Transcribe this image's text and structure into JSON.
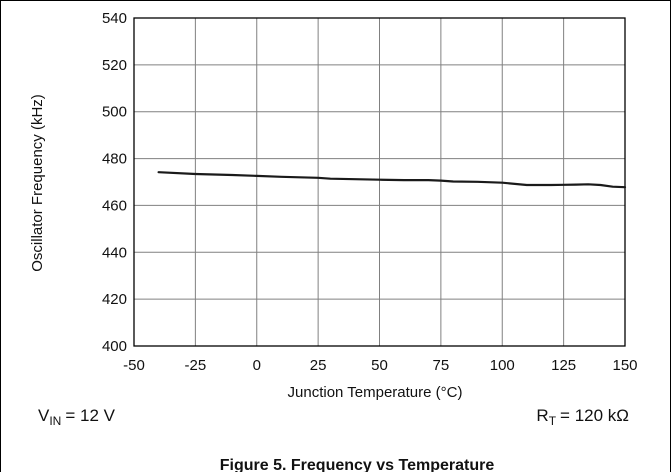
{
  "chart_data": {
    "type": "line",
    "title": "Figure 5. Frequency vs Temperature",
    "xlabel": "Junction Temperature (°C)",
    "ylabel": "Oscillator Frequency (kHz)",
    "xlim": [
      -50,
      150
    ],
    "ylim": [
      400,
      540
    ],
    "xticks": [
      -50,
      -25,
      0,
      25,
      50,
      75,
      100,
      125,
      150
    ],
    "yticks": [
      400,
      420,
      440,
      460,
      480,
      500,
      520,
      540
    ],
    "grid": true,
    "series": [
      {
        "x": [
          -40,
          -25,
          -10,
          0,
          10,
          25,
          30,
          40,
          50,
          60,
          70,
          75,
          80,
          90,
          100,
          110,
          120,
          125,
          130,
          135,
          140,
          145,
          150
        ],
        "y": [
          474.2,
          473.4,
          473.0,
          472.6,
          472.2,
          471.8,
          471.4,
          471.2,
          471.0,
          470.8,
          470.8,
          470.6,
          470.2,
          470.1,
          469.7,
          468.7,
          468.7,
          468.8,
          468.9,
          469.0,
          468.7,
          468.0,
          467.8
        ],
        "color": "#1a1a1a"
      }
    ],
    "conditions": {
      "vin": {
        "symbol": "V",
        "subscript": "IN",
        "value": "= 12 V"
      },
      "rt": {
        "symbol": "R",
        "subscript": "T",
        "value": "= 120 kΩ"
      }
    }
  }
}
